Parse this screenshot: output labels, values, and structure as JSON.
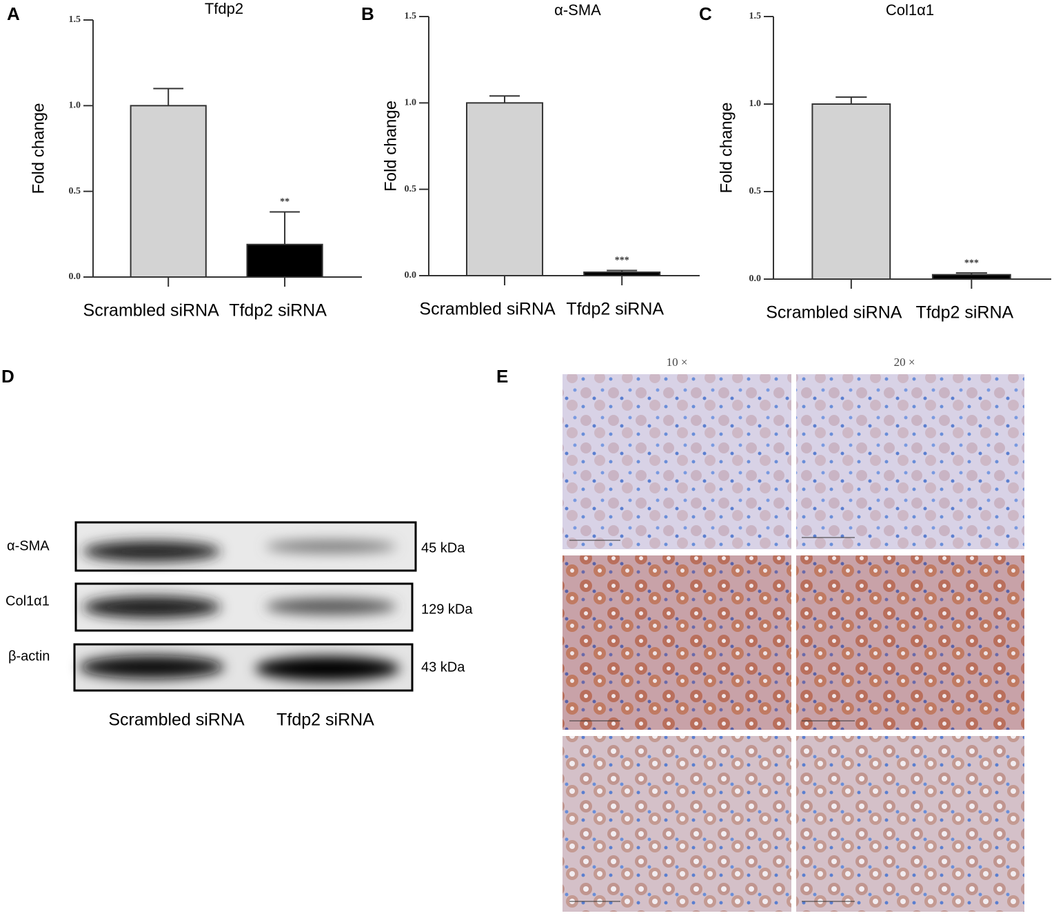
{
  "panel_labels": [
    "A",
    "B",
    "C",
    "D",
    "E"
  ],
  "chart_data": [
    {
      "type": "bar",
      "title": "Tfdp2",
      "ylabel": "Fold change",
      "categories": [
        "Scrambled siRNA",
        "Tfdp2 siRNA"
      ],
      "values": [
        1.0,
        0.19
      ],
      "errors": [
        0.1,
        0.19
      ],
      "colors": [
        "#d3d3d3",
        "#000000"
      ],
      "annotations": [
        null,
        "**"
      ],
      "ylim": [
        0,
        1.5
      ],
      "yticks": [
        {
          "value": 0,
          "label": "0.0"
        },
        {
          "value": 0.5,
          "label": "0.5"
        },
        {
          "value": 1,
          "label": "1.0"
        },
        {
          "value": 1.5,
          "label": "1.5"
        }
      ]
    },
    {
      "type": "bar",
      "title": "α-SMA",
      "ylabel": "Fold change",
      "categories": [
        "Scrambled siRNA",
        "Tfdp2 siRNA"
      ],
      "values": [
        1.0,
        0.02
      ],
      "errors": [
        0.04,
        0.01
      ],
      "colors": [
        "#d3d3d3",
        "#000000"
      ],
      "annotations": [
        null,
        "***"
      ],
      "ylim": [
        0,
        1.5
      ],
      "yticks": [
        {
          "value": 0,
          "label": "0.0"
        },
        {
          "value": 0.5,
          "label": "0.5"
        },
        {
          "value": 1,
          "label": "1.0"
        },
        {
          "value": 1.5,
          "label": "1.5"
        }
      ]
    },
    {
      "type": "bar",
      "title": "Col1α1",
      "ylabel": "Fold change",
      "categories": [
        "Scrambled siRNA",
        "Tfdp2 siRNA"
      ],
      "values": [
        1.0,
        0.025
      ],
      "errors": [
        0.04,
        0.01
      ],
      "colors": [
        "#d3d3d3",
        "#000000"
      ],
      "annotations": [
        null,
        "***"
      ],
      "ylim": [
        0,
        1.5
      ],
      "yticks": [
        {
          "value": 0,
          "label": "0.0"
        },
        {
          "value": 0.5,
          "label": "0.5"
        },
        {
          "value": 1,
          "label": "1.0"
        },
        {
          "value": 1.5,
          "label": "1.5"
        }
      ]
    }
  ],
  "western_blot": {
    "proteins": [
      "α-SMA",
      "Col1α1",
      "β-actin"
    ],
    "sizes": [
      "45 kDa",
      "129 kDa",
      "43 kDa"
    ],
    "lanes": [
      "Scrambled siRNA",
      "Tfdp2 siRNA"
    ]
  },
  "histology": {
    "columns": [
      "10 ×",
      "20 ×"
    ]
  }
}
